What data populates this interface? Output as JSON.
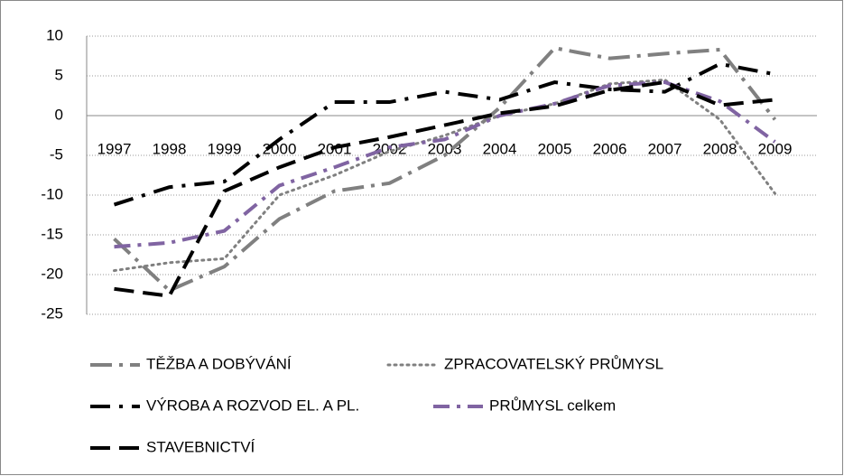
{
  "chart_data": {
    "type": "line",
    "categories": [
      "1997",
      "1998",
      "1999",
      "2000",
      "2001",
      "2002",
      "2003",
      "2004",
      "2005",
      "2006",
      "2007",
      "2008",
      "2009"
    ],
    "series": [
      {
        "name": "TĚŽBA A DOBÝVÁNÍ",
        "color": "#808080",
        "values": [
          -15.5,
          -22,
          -19,
          -13,
          -9.5,
          -8.5,
          -5,
          1,
          8.5,
          7.2,
          7.8,
          8.3,
          -0.5
        ]
      },
      {
        "name": "ZPRACOVATELSKÝ PRŮMYSL",
        "color": "#808080",
        "values": [
          -19.5,
          -18.5,
          -18,
          -10,
          -7.5,
          -4.5,
          -2.5,
          0,
          1.5,
          4,
          4.5,
          -0.5,
          -9.8
        ]
      },
      {
        "name": "VÝROBA A ROZVOD EL. A  PL.",
        "color": "#000000",
        "values": [
          -11.2,
          -9,
          -8.3,
          -3,
          1.7,
          1.7,
          3,
          2,
          4.2,
          3.3,
          3,
          6.5,
          5.2
        ]
      },
      {
        "name": "PRŮMYSL celkem",
        "color": "#8064a2",
        "values": [
          -16.5,
          -16,
          -14.5,
          -8.8,
          -6.5,
          -4,
          -3,
          0,
          1.5,
          3.8,
          4.2,
          1.8,
          -3.3
        ]
      },
      {
        "name": "STAVEBNICTVÍ",
        "color": "#000000",
        "values": [
          -21.8,
          -22.7,
          -9.5,
          -6.5,
          -4,
          -2.7,
          -1.2,
          0.3,
          1.2,
          3.2,
          4.2,
          1.3,
          2
        ]
      }
    ],
    "ylim": [
      -25,
      10
    ],
    "yticks": [
      -25,
      -20,
      -15,
      -10,
      -5,
      0,
      5,
      10
    ],
    "grid": true
  }
}
